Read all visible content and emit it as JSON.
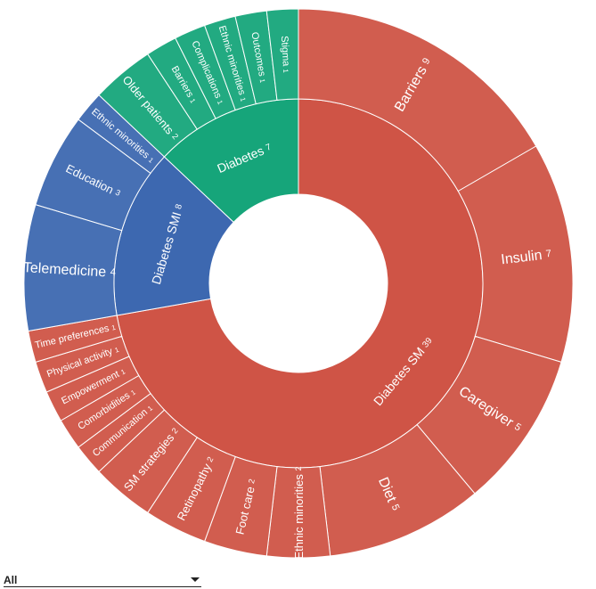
{
  "filter": {
    "selected": "All",
    "icon": "caret-down-icon"
  },
  "chart_data": {
    "type": "sunburst",
    "colors": {
      "Diabetes SM": "#cf5446",
      "Diabetes": "#16a57a",
      "Diabetes SMI": "#3d68b0"
    },
    "series": [
      {
        "name": "Diabetes SM",
        "value": 39,
        "children": [
          {
            "name": "Barriers",
            "value": 9
          },
          {
            "name": "Insulin",
            "value": 7
          },
          {
            "name": "Caregiver",
            "value": 5
          },
          {
            "name": "Diet",
            "value": 5
          },
          {
            "name": "Ethnic minorities",
            "value": 2
          },
          {
            "name": "Foot care",
            "value": 2
          },
          {
            "name": "Retinopathy",
            "value": 2
          },
          {
            "name": "SM strategies",
            "value": 2
          },
          {
            "name": "Communication",
            "value": 1
          },
          {
            "name": "Comorbidities",
            "value": 1
          },
          {
            "name": "Empowerment",
            "value": 1
          },
          {
            "name": "Physical activity",
            "value": 1
          },
          {
            "name": "Time preferences",
            "value": 1
          }
        ]
      },
      {
        "name": "Diabetes SMI",
        "value": 8,
        "children": [
          {
            "name": "Telemedicine",
            "value": 4
          },
          {
            "name": "Education",
            "value": 3
          },
          {
            "name": "Ethnic minorities",
            "value": 1
          }
        ]
      },
      {
        "name": "Diabetes",
        "value": 7,
        "children": [
          {
            "name": "Older patients",
            "value": 2
          },
          {
            "name": "Barriers",
            "value": 1
          },
          {
            "name": "Complications",
            "value": 1
          },
          {
            "name": "Ethnic minorities",
            "value": 1
          },
          {
            "name": "Outcomes",
            "value": 1
          },
          {
            "name": "Stigma",
            "value": 1
          }
        ]
      }
    ]
  }
}
